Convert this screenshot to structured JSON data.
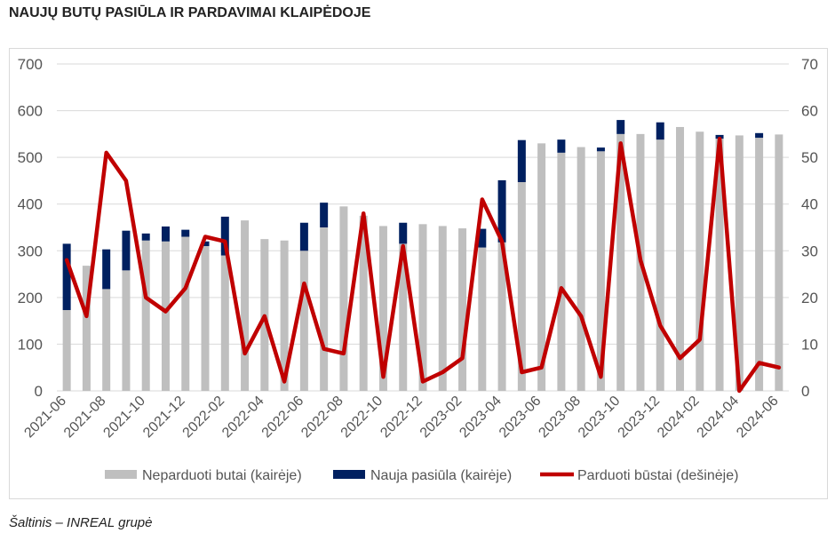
{
  "title": "NAUJŲ BUTŲ PASIŪLA IR PARDAVIMAI KLAIPĖDOJE",
  "source": "Šaltinis – INREAL grupė",
  "colors": {
    "unsold": "#bfbfbf",
    "new": "#002060",
    "sold": "#c00000",
    "grid": "#d9d9d9"
  },
  "chart_data": {
    "type": "bar",
    "x": [
      "2021-06",
      "2021-07",
      "2021-08",
      "2021-09",
      "2021-10",
      "2021-11",
      "2021-12",
      "2022-01",
      "2022-02",
      "2022-03",
      "2022-04",
      "2022-05",
      "2022-06",
      "2022-07",
      "2022-08",
      "2022-09",
      "2022-10",
      "2022-11",
      "2022-12",
      "2023-01",
      "2023-02",
      "2023-03",
      "2023-04",
      "2023-05",
      "2023-06",
      "2023-07",
      "2023-08",
      "2023-09",
      "2023-10",
      "2023-11",
      "2023-12",
      "2024-01",
      "2024-02",
      "2024-03",
      "2024-04",
      "2024-05",
      "2024-06"
    ],
    "x_tick_labels": [
      "2021-06",
      "2021-08",
      "2021-10",
      "2021-12",
      "2022-02",
      "2022-04",
      "2022-06",
      "2022-08",
      "2022-10",
      "2022-12",
      "2023-02",
      "2023-04",
      "2023-06",
      "2023-08",
      "2023-10",
      "2023-12",
      "2024-02",
      "2024-04",
      "2024-06"
    ],
    "series": [
      {
        "name": "Neparduoti butai (kairėje)",
        "type": "bar",
        "axis": "left",
        "values": [
          173,
          268,
          218,
          258,
          322,
          320,
          330,
          310,
          290,
          365,
          325,
          322,
          300,
          350,
          395,
          375,
          353,
          315,
          357,
          353,
          348,
          307,
          318,
          447,
          530,
          510,
          522,
          513,
          550,
          550,
          538,
          565,
          555,
          540,
          547,
          542,
          549
        ]
      },
      {
        "name": "Nauja pasiūla (kairėje)",
        "type": "bar",
        "axis": "left",
        "stacked": true,
        "values": [
          142,
          0,
          85,
          85,
          15,
          32,
          15,
          10,
          83,
          0,
          0,
          0,
          60,
          53,
          0,
          0,
          0,
          45,
          0,
          0,
          0,
          40,
          133,
          90,
          0,
          28,
          0,
          8,
          30,
          0,
          37,
          0,
          0,
          8,
          0,
          10,
          0
        ]
      },
      {
        "name": "Parduoti būstai (dešinėje)",
        "type": "line",
        "axis": "right",
        "values": [
          28,
          16,
          51,
          45,
          20,
          17,
          22,
          33,
          32,
          8,
          16,
          2,
          23,
          9,
          8,
          38,
          3,
          31,
          2,
          4,
          7,
          41,
          32,
          4,
          5,
          22,
          16,
          3,
          53,
          28,
          14,
          7,
          11,
          54,
          0,
          6,
          5
        ]
      }
    ],
    "y_left": {
      "min": 0,
      "max": 700,
      "ticks": [
        0,
        100,
        200,
        300,
        400,
        500,
        600,
        700
      ]
    },
    "y_right": {
      "min": 0,
      "max": 70,
      "ticks": [
        0,
        10,
        20,
        30,
        40,
        50,
        60,
        70
      ]
    },
    "grid": true,
    "legend": "bottom"
  }
}
